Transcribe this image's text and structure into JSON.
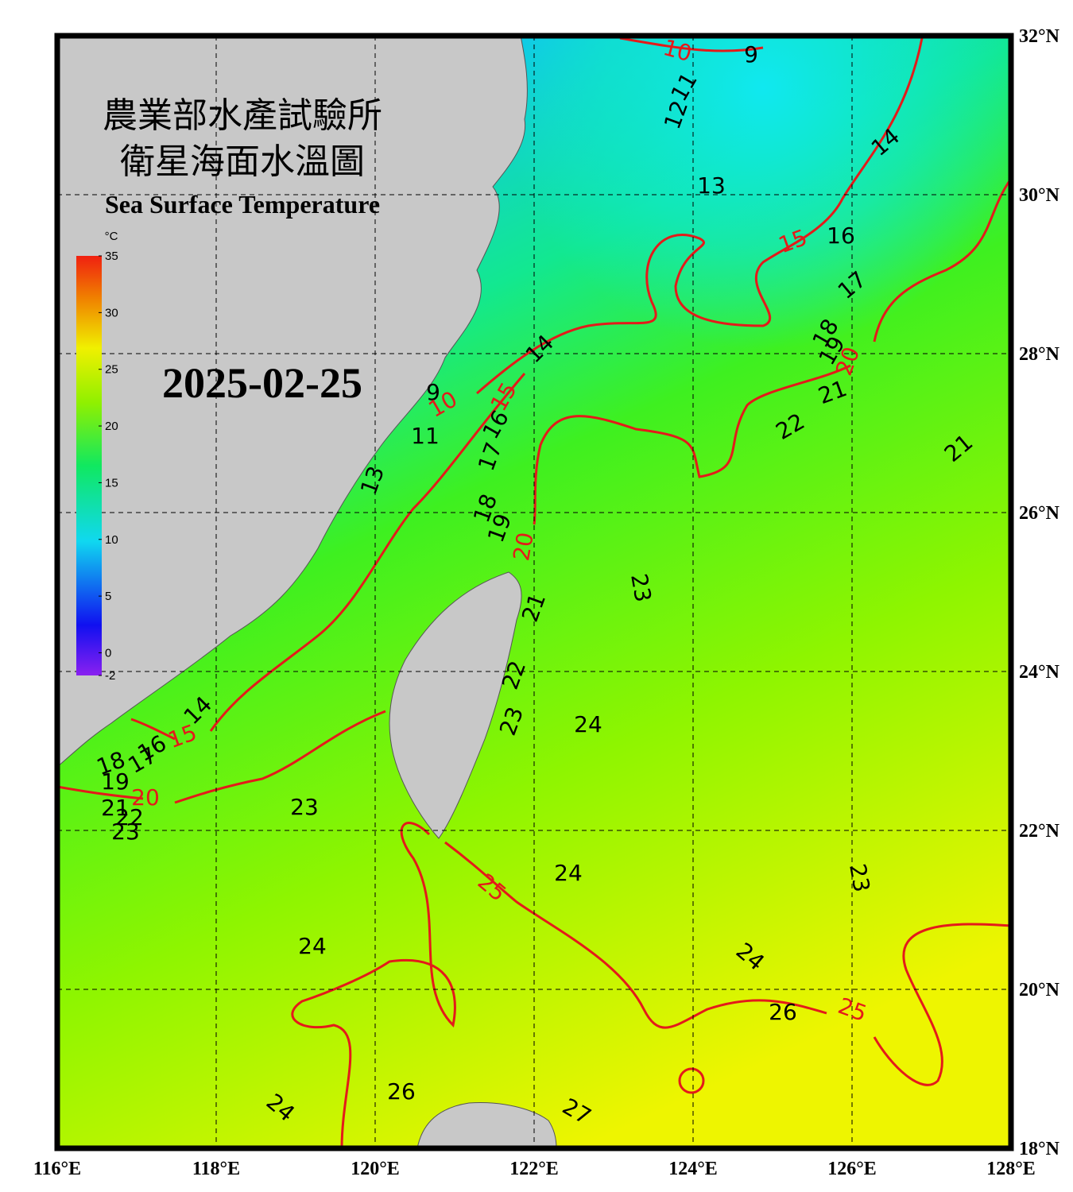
{
  "map": {
    "title_lines": [
      "農業部水產試驗所",
      "衛星海面水溫圖"
    ],
    "subtitle": "Sea Surface Temperature",
    "date": "2025-02-25",
    "colorbar": {
      "unit": "°C",
      "range": [
        -2,
        35
      ],
      "ticks": [
        35,
        30,
        25,
        20,
        15,
        10,
        5,
        0,
        -2
      ]
    },
    "lon_range": [
      116,
      128
    ],
    "lat_range": [
      18,
      32
    ],
    "lon_ticks": [
      {
        "value": 116,
        "label": "116°E"
      },
      {
        "value": 118,
        "label": "118°E"
      },
      {
        "value": 120,
        "label": "120°E"
      },
      {
        "value": 122,
        "label": "122°E"
      },
      {
        "value": 124,
        "label": "124°E"
      },
      {
        "value": 126,
        "label": "126°E"
      },
      {
        "value": 128,
        "label": "128°E"
      }
    ],
    "lat_ticks": [
      {
        "value": 18,
        "label": "18°N"
      },
      {
        "value": 20,
        "label": "20°N"
      },
      {
        "value": 22,
        "label": "22°N"
      },
      {
        "value": 24,
        "label": "24°N"
      },
      {
        "value": 26,
        "label": "26°N"
      },
      {
        "value": 28,
        "label": "28°N"
      },
      {
        "value": 30,
        "label": "30°N"
      },
      {
        "value": 32,
        "label": "32°N"
      }
    ],
    "contour_labels": [
      10,
      9,
      11,
      12,
      14,
      13,
      15,
      16,
      17,
      18,
      19,
      20,
      21,
      22,
      21,
      14,
      9,
      10,
      11,
      15,
      16,
      17,
      13,
      18,
      19,
      20,
      21,
      23,
      22,
      23,
      24,
      14,
      15,
      16,
      17,
      18,
      19,
      20,
      21,
      22,
      23,
      23,
      24,
      25,
      23,
      24,
      24,
      26,
      25,
      26,
      24,
      27
    ]
  }
}
